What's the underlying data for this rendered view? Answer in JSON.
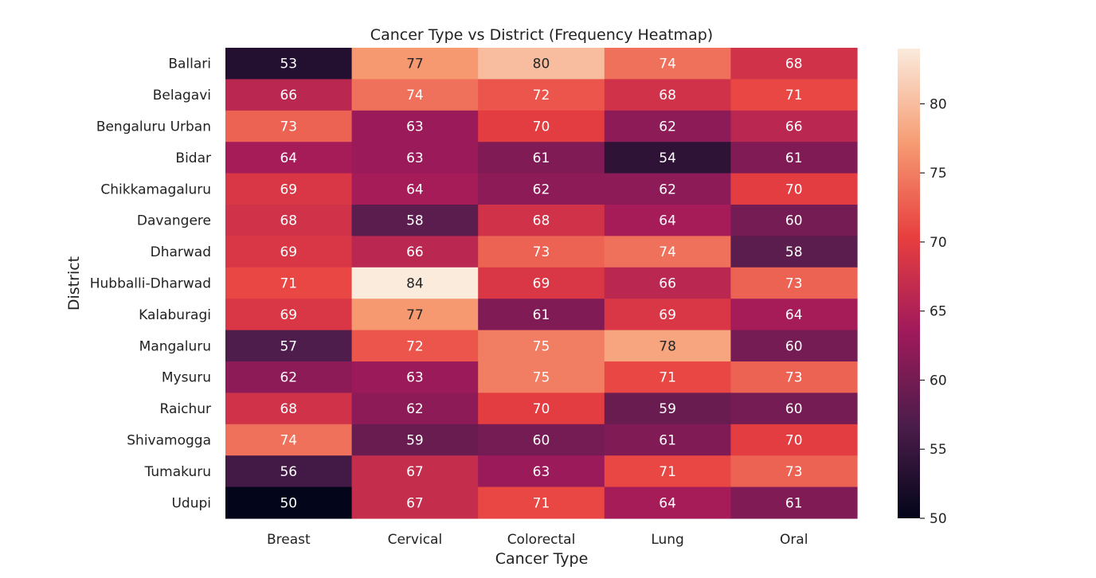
{
  "chart_data": {
    "type": "heatmap",
    "title": "Cancer Type vs District (Frequency Heatmap)",
    "xlabel": "Cancer Type",
    "ylabel": "District",
    "x_categories": [
      "Breast",
      "Cervical",
      "Colorectal",
      "Lung",
      "Oral"
    ],
    "y_categories": [
      "Ballari",
      "Belagavi",
      "Bengaluru Urban",
      "Bidar",
      "Chikkamagaluru",
      "Davangere",
      "Dharwad",
      "Hubballi-Dharwad",
      "Kalaburagi",
      "Mangaluru",
      "Mysuru",
      "Raichur",
      "Shivamogga",
      "Tumakuru",
      "Udupi"
    ],
    "values": [
      [
        53,
        77,
        80,
        74,
        68
      ],
      [
        66,
        74,
        72,
        68,
        71
      ],
      [
        73,
        63,
        70,
        62,
        66
      ],
      [
        64,
        63,
        61,
        54,
        61
      ],
      [
        69,
        64,
        62,
        62,
        70
      ],
      [
        68,
        58,
        68,
        64,
        60
      ],
      [
        69,
        66,
        73,
        74,
        58
      ],
      [
        71,
        84,
        69,
        66,
        73
      ],
      [
        69,
        77,
        61,
        69,
        64
      ],
      [
        57,
        72,
        75,
        78,
        60
      ],
      [
        62,
        63,
        75,
        71,
        73
      ],
      [
        68,
        62,
        70,
        59,
        60
      ],
      [
        74,
        59,
        60,
        61,
        70
      ],
      [
        56,
        67,
        63,
        71,
        73
      ],
      [
        50,
        67,
        71,
        64,
        61
      ]
    ],
    "colorbar": {
      "range": [
        50,
        84
      ],
      "ticks": [
        50,
        55,
        60,
        65,
        70,
        75,
        80
      ],
      "colormap": "rocket",
      "colors": [
        "#03051a",
        "#4c1d4b",
        "#a11a5b",
        "#e83f3f",
        "#f69c73",
        "#faebdd"
      ]
    },
    "annotated": true,
    "grid": false,
    "legend": "colorbar-right"
  }
}
